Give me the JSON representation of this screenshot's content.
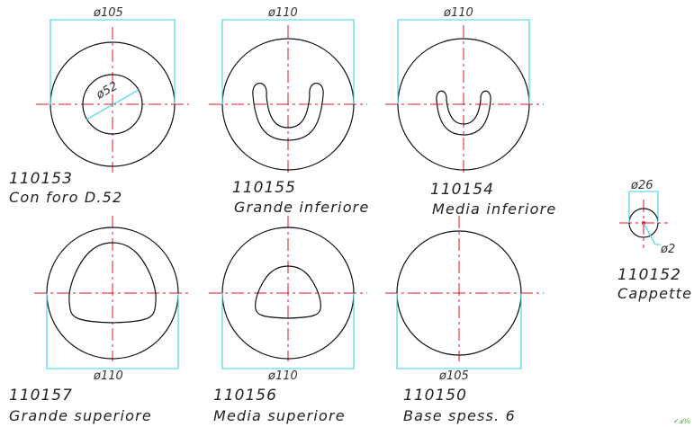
{
  "parts": [
    {
      "code": "110153",
      "description": "Con foro D.52",
      "outer_dim": "ø105",
      "hole_dim": "ø52"
    },
    {
      "code": "110155",
      "description": "Grande inferiore",
      "outer_dim": "ø110"
    },
    {
      "code": "110154",
      "description": "Media inferiore",
      "outer_dim": "ø110"
    },
    {
      "code": "110157",
      "description": "Grande superiore",
      "outer_dim": "ø110"
    },
    {
      "code": "110156",
      "description": "Media superiore",
      "outer_dim": "ø110"
    },
    {
      "code": "110150",
      "description": "Base spess. 6",
      "outer_dim": "ø105"
    },
    {
      "code": "110152",
      "description": "Cappette",
      "outer_dim": "ø26",
      "hole_dim": "ø2"
    }
  ],
  "colors": {
    "outline": "#111111",
    "dimension": "#33d6e6",
    "centerline": "#e0152a",
    "corner_mark": "#22aa22"
  },
  "corner_mark": "✓ⅎ⁰⁄₀"
}
